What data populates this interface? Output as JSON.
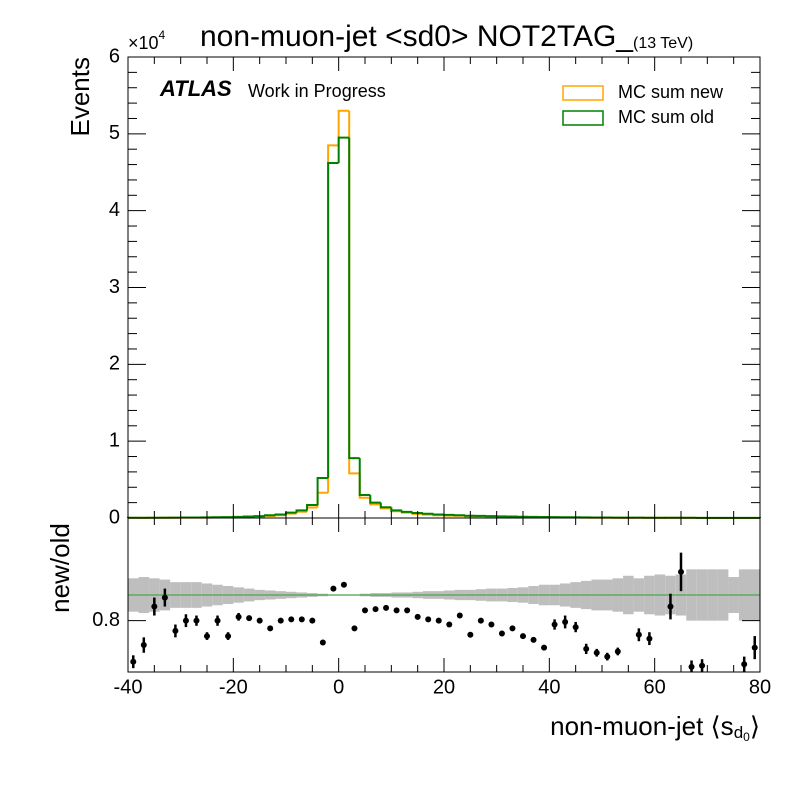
{
  "chart_data": {
    "type": "histogram-ratio",
    "title": "non-muon-jet <sd0> NOT2TAG_",
    "title_sub": "(13 TeV)",
    "atlas_label": "ATLAS",
    "atlas_sub": "Work in Progress",
    "y_label": "Events",
    "y_scale_base": "×10",
    "y_scale_exp": "4",
    "x_label": {
      "main": "non-muon-jet ⟨s",
      "sub": "d",
      "subsub": "0",
      "end": "⟩"
    },
    "bins": [
      -40,
      -38,
      -36,
      -34,
      -32,
      -30,
      -28,
      -26,
      -24,
      -22,
      -20,
      -18,
      -16,
      -14,
      -12,
      -10,
      -8,
      -6,
      -4,
      -2,
      0,
      2,
      4,
      6,
      8,
      10,
      12,
      14,
      16,
      18,
      20,
      22,
      24,
      26,
      28,
      30,
      32,
      34,
      36,
      38,
      40,
      42,
      44,
      46,
      48,
      50,
      52,
      54,
      56,
      58,
      60,
      62,
      64,
      66,
      68,
      70,
      72,
      74,
      76,
      78,
      80
    ],
    "xlim": [
      -40,
      80
    ],
    "xticks": [
      -40,
      -20,
      0,
      20,
      40,
      60,
      80
    ],
    "ylim": [
      0,
      60000
    ],
    "yticks": [
      {
        "value": 0,
        "label": "0"
      },
      {
        "value": 10000,
        "label": "1"
      },
      {
        "value": 20000,
        "label": "2"
      },
      {
        "value": 30000,
        "label": "3"
      },
      {
        "value": 40000,
        "label": "4"
      },
      {
        "value": 50000,
        "label": "5"
      },
      {
        "value": 60000,
        "label": "6"
      }
    ],
    "legend": "upper right",
    "series": [
      {
        "name": "MC sum new",
        "color": "#ffa500",
        "values": [
          14,
          18,
          36,
          39,
          36,
          48,
          56,
          54,
          80,
          82,
          125,
          164,
          200,
          259,
          360,
          567,
          810,
          1360,
          3280,
          48500,
          53000,
          5800,
          2640,
          1780,
          1260,
          880,
          704,
          540,
          446,
          360,
          308,
          294,
          207,
          216,
          185,
          147,
          141,
          116,
          98,
          77,
          85,
          79,
          68,
          46,
          39,
          31,
          31,
          15,
          31,
          26,
          11,
          27,
          33,
          11,
          11,
          5,
          6,
          4,
          8,
          8
        ]
      },
      {
        "name": "MC sum old",
        "color": "#008000",
        "values": [
          30,
          30,
          40,
          40,
          50,
          60,
          70,
          80,
          100,
          120,
          150,
          200,
          250,
          350,
          450,
          700,
          1000,
          1700,
          5200,
          46200,
          49500,
          7800,
          3000,
          2000,
          1400,
          1000,
          800,
          650,
          550,
          450,
          400,
          350,
          300,
          270,
          240,
          210,
          190,
          170,
          150,
          130,
          110,
          100,
          90,
          80,
          70,
          60,
          55,
          50,
          45,
          40,
          35,
          30,
          28,
          26,
          24,
          22,
          20,
          18,
          16,
          14
        ]
      }
    ],
    "ratio": {
      "y_label": "new/old",
      "ylim": [
        0.4,
        1.6
      ],
      "yticks": [
        0.8
      ],
      "reference": 1,
      "reference_color": "#2ca02c",
      "band_color": "#bebebe",
      "color": "#000000",
      "values": [
        0.48,
        0.61,
        0.91,
        0.98,
        0.72,
        0.8,
        0.8,
        0.68,
        0.8,
        0.68,
        0.83,
        0.82,
        0.8,
        0.74,
        0.8,
        0.81,
        0.81,
        0.8,
        0.63,
        1.05,
        1.08,
        0.74,
        0.88,
        0.89,
        0.9,
        0.88,
        0.88,
        0.83,
        0.81,
        0.8,
        0.77,
        0.84,
        0.69,
        0.8,
        0.77,
        0.7,
        0.74,
        0.68,
        0.65,
        0.59,
        0.77,
        0.79,
        0.75,
        0.58,
        0.55,
        0.52,
        0.56,
        null,
        0.69,
        0.66,
        null,
        0.91,
        1.18,
        0.44,
        0.45,
        null,
        null,
        null,
        0.46,
        0.59
      ],
      "errors": [
        0.05,
        0.06,
        0.07,
        0.07,
        0.05,
        0.05,
        0.04,
        0.03,
        0.04,
        0.03,
        0.03,
        0.02,
        0.02,
        0.01,
        0.01,
        0.01,
        0.01,
        0.01,
        0.005,
        0.005,
        0.005,
        0.005,
        0.01,
        0.01,
        0.01,
        0.01,
        0.01,
        0.01,
        0.01,
        0.01,
        0.01,
        0.01,
        0.01,
        0.02,
        0.02,
        0.02,
        0.02,
        0.02,
        0.02,
        0.02,
        0.04,
        0.05,
        0.04,
        0.04,
        0.03,
        0.03,
        0.03,
        null,
        0.05,
        0.05,
        null,
        0.1,
        0.15,
        0.05,
        0.05,
        null,
        null,
        null,
        0.06,
        0.09
      ],
      "band": [
        0.13,
        0.14,
        0.13,
        0.12,
        0.1,
        0.1,
        0.1,
        0.09,
        0.08,
        0.07,
        0.06,
        0.05,
        0.04,
        0.035,
        0.03,
        0.025,
        0.02,
        0.015,
        0.01,
        0.005,
        0.005,
        0.005,
        0.01,
        0.015,
        0.015,
        0.02,
        0.02,
        0.025,
        0.03,
        0.03,
        0.035,
        0.04,
        0.04,
        0.045,
        0.05,
        0.05,
        0.055,
        0.06,
        0.07,
        0.08,
        0.08,
        0.09,
        0.1,
        0.11,
        0.12,
        0.12,
        0.13,
        0.15,
        0.13,
        0.15,
        0.16,
        0.15,
        0.16,
        0.2,
        0.2,
        0.2,
        0.2,
        0.14,
        0.2,
        0.2
      ]
    }
  }
}
